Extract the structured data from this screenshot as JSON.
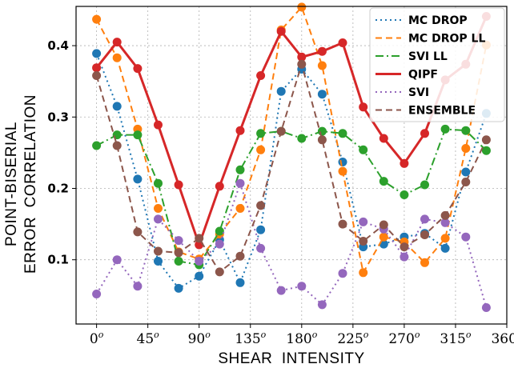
{
  "chart_data": {
    "type": "line",
    "xlabel": "SHEAR  INTENSITY",
    "ylabel_lines": [
      "POINT-BISERIAL",
      "ERROR  CORRELATION"
    ],
    "x": [
      0,
      18,
      36,
      54,
      72,
      90,
      108,
      126,
      144,
      162,
      180,
      198,
      216,
      234,
      252,
      270,
      288,
      306,
      324,
      342
    ],
    "xlim": [
      -18,
      360
    ],
    "ylim": [
      0.01,
      0.455
    ],
    "x_ticks": [
      0,
      45,
      90,
      135,
      180,
      225,
      270,
      315,
      360
    ],
    "x_tick_suffix": "o",
    "y_ticks": [
      0.1,
      0.2,
      0.3,
      0.4
    ],
    "y_tick_labels": [
      "0.1",
      "0.2",
      "0.3",
      "0.4"
    ],
    "grid": true,
    "legend_position": "top-right",
    "series": [
      {
        "name": "MC DROP",
        "color": "#1f77b4",
        "dash": "2,4",
        "width": 2,
        "values": [
          0.389,
          0.315,
          0.213,
          0.098,
          0.06,
          0.077,
          0.128,
          0.068,
          0.142,
          0.336,
          0.367,
          0.332,
          0.237,
          0.118,
          0.122,
          0.132,
          0.137,
          0.116,
          0.223,
          0.305
        ]
      },
      {
        "name": "MC DROP LL",
        "color": "#ff7f0e",
        "dash": "8,5",
        "width": 2,
        "values": [
          0.437,
          0.383,
          0.283,
          0.172,
          0.111,
          0.101,
          0.136,
          0.172,
          0.254,
          0.422,
          0.454,
          0.372,
          0.224,
          0.082,
          0.132,
          0.125,
          0.096,
          0.13,
          0.256,
          0.401
        ]
      },
      {
        "name": "SVI LL",
        "color": "#2ca02c",
        "dash": "10,4,2,4",
        "width": 2,
        "values": [
          0.26,
          0.275,
          0.275,
          0.207,
          0.098,
          0.093,
          0.14,
          0.226,
          0.277,
          0.28,
          0.27,
          0.28,
          0.277,
          0.254,
          0.21,
          0.191,
          0.205,
          0.283,
          0.281,
          0.253
        ]
      },
      {
        "name": "QIPF",
        "color": "#d62728",
        "dash": "",
        "width": 3,
        "values": [
          0.369,
          0.405,
          0.368,
          0.289,
          0.205,
          0.121,
          0.203,
          0.281,
          0.358,
          0.42,
          0.384,
          0.392,
          0.404,
          0.314,
          0.27,
          0.235,
          0.277,
          0.352,
          0.374,
          0.441
        ]
      },
      {
        "name": "SVI",
        "color": "#9467bd",
        "dash": "2,4",
        "width": 2,
        "values": [
          0.052,
          0.1,
          0.063,
          0.157,
          0.127,
          0.098,
          0.122,
          0.207,
          0.116,
          0.057,
          0.063,
          0.037,
          0.081,
          0.153,
          0.143,
          0.104,
          0.157,
          0.152,
          0.132,
          0.033
        ]
      },
      {
        "name": "ENSEMBLE",
        "color": "#8c564b",
        "dash": "8,5",
        "width": 2,
        "values": [
          0.358,
          0.26,
          0.139,
          0.112,
          0.11,
          0.13,
          0.083,
          0.105,
          0.176,
          0.28,
          0.374,
          0.268,
          0.15,
          0.126,
          0.149,
          0.118,
          0.135,
          0.162,
          0.209,
          0.268
        ]
      }
    ]
  }
}
